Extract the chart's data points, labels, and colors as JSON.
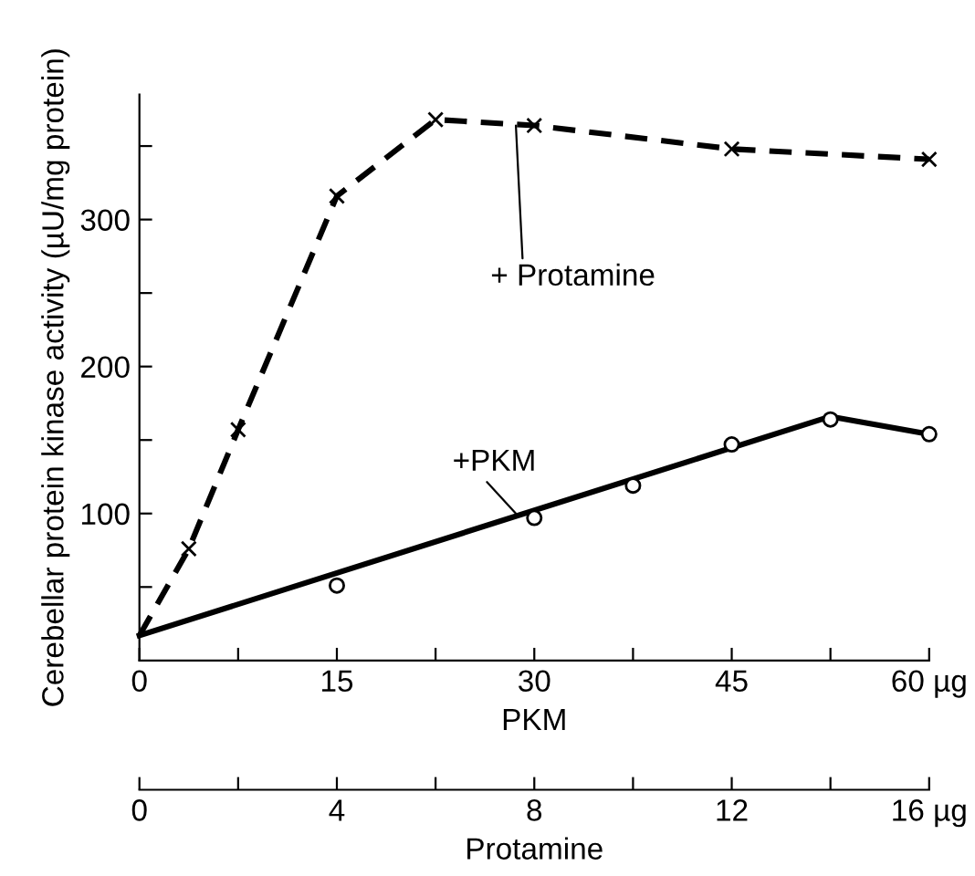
{
  "chart_data": {
    "type": "line",
    "ylabel": "Cerebellar protein kinase activity (µU/mg protein)",
    "xlabel": "PKM",
    "x2label": "Protamine",
    "xlim": [
      0,
      60
    ],
    "xticks": [
      0,
      {
        "value": 7.5,
        "label": null
      },
      15,
      {
        "value": 22.5,
        "label": null
      },
      30,
      {
        "value": 37.5,
        "label": null
      },
      45,
      {
        "value": 52.5,
        "label": null
      },
      {
        "value": 60,
        "label": "60 µg"
      }
    ],
    "x2lim": [
      0,
      16
    ],
    "x2ticks": [
      0,
      {
        "value": 2,
        "label": null
      },
      4,
      {
        "value": 6,
        "label": null
      },
      8,
      {
        "value": 10,
        "label": null
      },
      12,
      {
        "value": 14,
        "label": null
      },
      {
        "value": 16,
        "label": "16 µg"
      }
    ],
    "ylim": [
      0,
      385
    ],
    "yticks": [
      {
        "value": 50,
        "label": null
      },
      100,
      {
        "value": 150,
        "label": null
      },
      200,
      {
        "value": 250,
        "label": null
      },
      300,
      {
        "value": 350,
        "label": null
      }
    ],
    "grid": false,
    "legend": false,
    "series": [
      {
        "axis": "x2",
        "color": "#000000",
        "line_style": "dashed",
        "marker": "none",
        "x": [
          0,
          1,
          2,
          4,
          6,
          8,
          12,
          16
        ],
        "values": [
          17,
          76,
          157,
          316,
          368,
          364,
          348,
          341
        ]
      },
      {
        "type": "scatter",
        "axis": "x2",
        "color": "#000000",
        "marker": "cross",
        "x": [
          1,
          2,
          4,
          6,
          8,
          12,
          16
        ],
        "values": [
          76,
          157,
          316,
          368,
          364,
          348,
          341
        ]
      },
      {
        "color": "#000000",
        "line_style": "solid",
        "marker": "none",
        "x": [
          0,
          52.5,
          60
        ],
        "values": [
          17,
          166,
          154
        ]
      },
      {
        "type": "scatter",
        "color": "#000000",
        "marker": "circle",
        "x": [
          15,
          30,
          37.5,
          45,
          52.5,
          60
        ],
        "values": [
          51,
          97,
          119,
          147,
          164,
          154
        ]
      }
    ],
    "annotations": [
      {
        "text": "+ Protamine",
        "x": 28.6,
        "y": 364
      },
      {
        "text": "+PKM",
        "x": 28.6,
        "y": 100
      }
    ]
  }
}
